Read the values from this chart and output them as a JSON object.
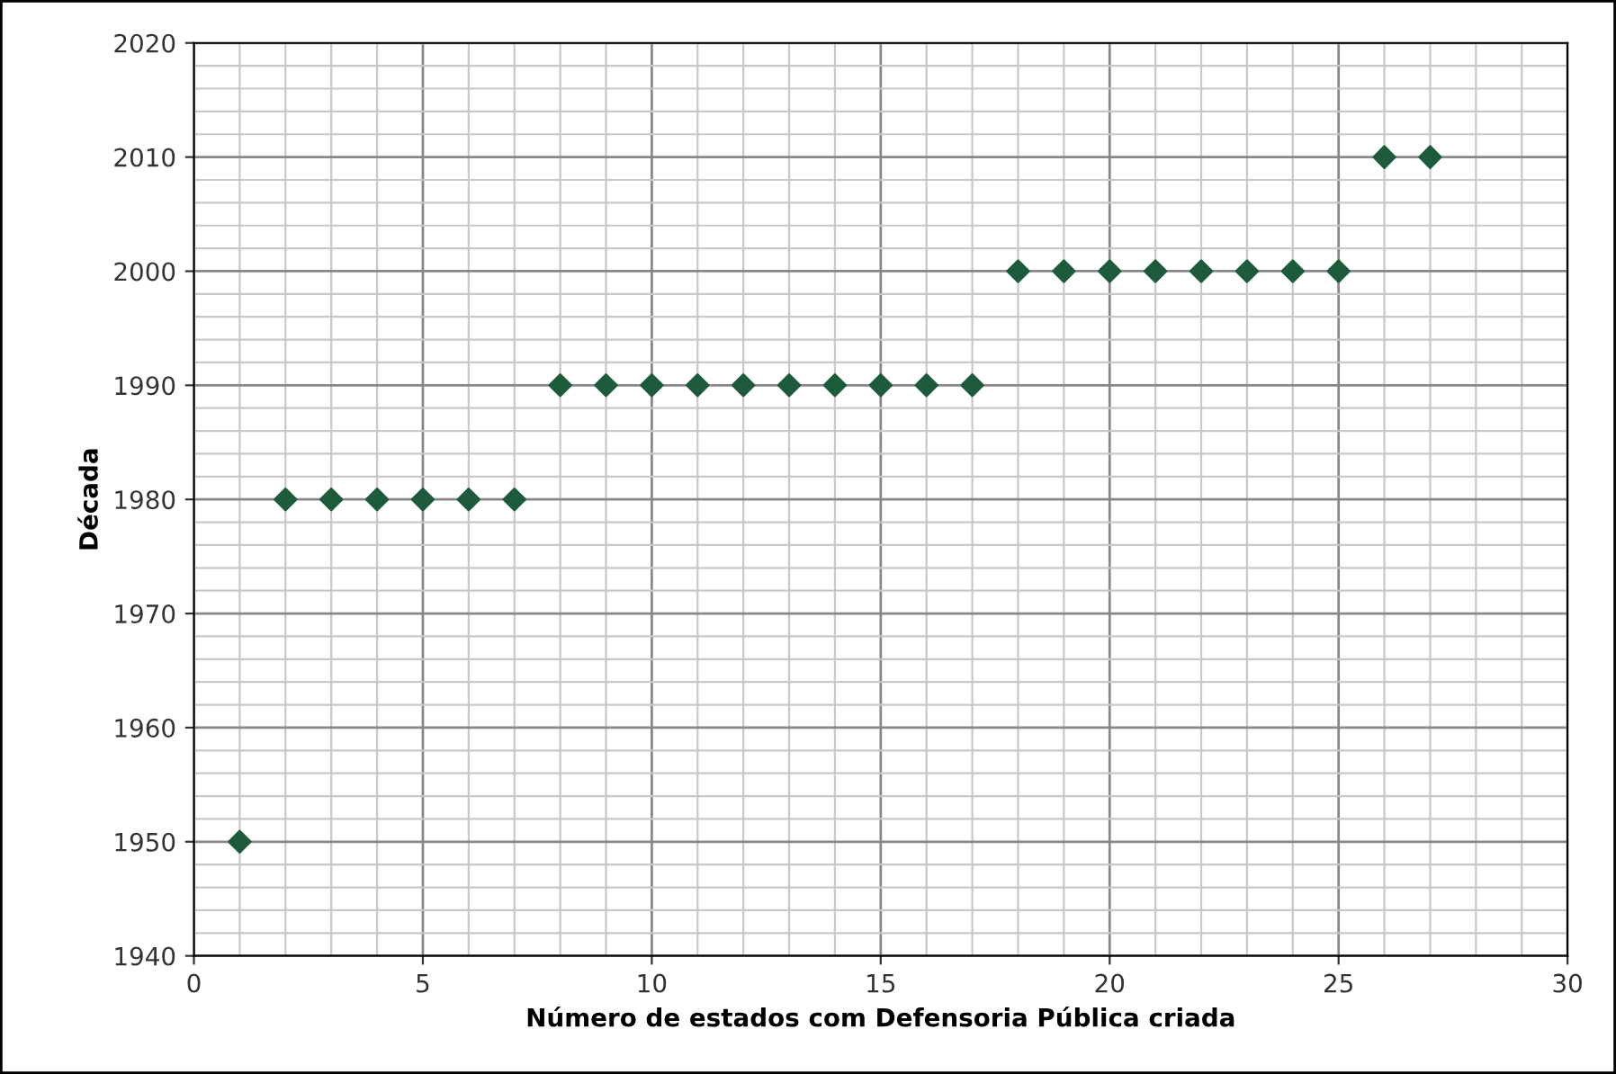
{
  "chart_data": {
    "type": "scatter",
    "xlabel": "Número de estados com Defensoria Pública criada",
    "ylabel": "Década",
    "x": [
      1,
      2,
      3,
      4,
      5,
      6,
      7,
      8,
      9,
      10,
      11,
      12,
      13,
      14,
      15,
      16,
      17,
      18,
      19,
      20,
      21,
      22,
      23,
      24,
      25,
      26,
      27
    ],
    "series": [
      {
        "color": "#1e5a3c",
        "values": [
          1950,
          1980,
          1980,
          1980,
          1980,
          1980,
          1980,
          1990,
          1990,
          1990,
          1990,
          1990,
          1990,
          1990,
          1990,
          1990,
          1990,
          2000,
          2000,
          2000,
          2000,
          2000,
          2000,
          2000,
          2000,
          2010,
          2010
        ]
      }
    ],
    "xlim": [
      0,
      30
    ],
    "xticks": [
      0,
      5,
      10,
      15,
      20,
      25,
      30
    ],
    "ylim": [
      1940,
      2020
    ],
    "yticks": [
      1940,
      1950,
      1960,
      1970,
      1980,
      1990,
      2000,
      2010,
      2020
    ],
    "grid": true,
    "marker": "diamond",
    "legend": false
  }
}
